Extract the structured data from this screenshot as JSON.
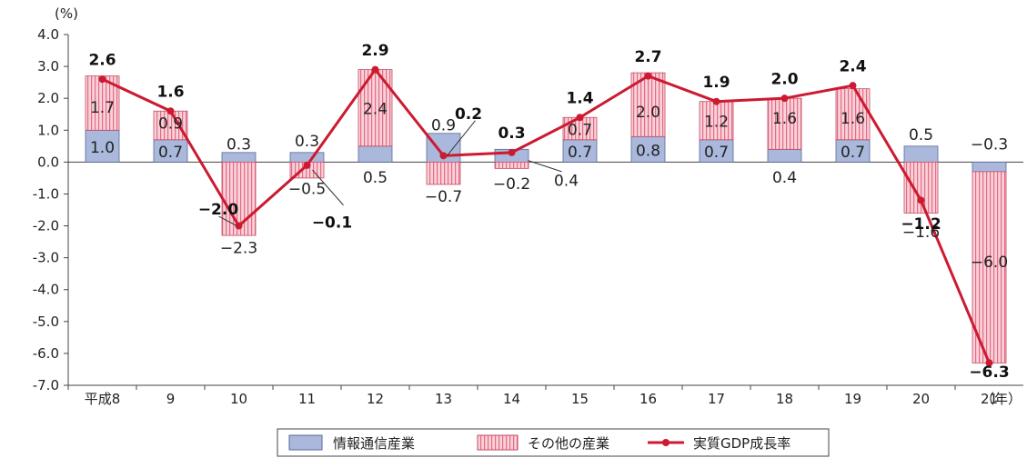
{
  "chart_data": {
    "type": "bar",
    "stacked": true,
    "unit_label": "(%)",
    "x_unit_label": "（年）",
    "categories": [
      "平成8",
      "9",
      "10",
      "11",
      "12",
      "13",
      "14",
      "15",
      "16",
      "17",
      "18",
      "19",
      "20",
      "21"
    ],
    "series": [
      {
        "name": "情報通信産業",
        "color": "#aab8dc",
        "values": [
          1.0,
          0.7,
          0.3,
          0.3,
          0.5,
          0.9,
          0.4,
          0.7,
          0.8,
          0.7,
          0.4,
          0.7,
          0.5,
          -0.3
        ],
        "value_labels": [
          "1.0",
          "0.7",
          "0.3",
          "0.3",
          "0.5",
          "0.9",
          "0.4",
          "0.7",
          "0.8",
          "0.7",
          "0.4",
          "0.7",
          "0.5",
          "−0.3"
        ]
      },
      {
        "name": "その他の産業",
        "color": "#f6c9d1",
        "stripe_color": "#e35d78",
        "values": [
          1.7,
          0.9,
          -2.3,
          -0.5,
          2.4,
          -0.7,
          -0.2,
          0.7,
          2.0,
          1.2,
          1.6,
          1.6,
          -1.6,
          -6.0
        ],
        "value_labels": [
          "1.7",
          "0.9",
          "−2.3",
          "−0.5",
          "2.4",
          "−0.7",
          "−0.2",
          "0.7",
          "2.0",
          "1.2",
          "1.6",
          "1.6",
          "−1.6",
          "−6.0"
        ]
      }
    ],
    "line": {
      "name": "実質GDP成長率",
      "color": "#cc1a30",
      "values": [
        2.6,
        1.6,
        -2.0,
        -0.1,
        2.9,
        0.2,
        0.3,
        1.4,
        2.7,
        1.9,
        2.0,
        2.4,
        -1.2,
        -6.3
      ],
      "value_labels": [
        "2.6",
        "1.6",
        "−2.0",
        "−0.1",
        "2.9",
        "0.2",
        "0.3",
        "1.4",
        "2.7",
        "1.9",
        "2.0",
        "2.4",
        "−1.2",
        "−6.3"
      ]
    },
    "y_ticks": [
      "4.0",
      "3.0",
      "2.0",
      "1.0",
      "0.0",
      "-1.0",
      "-2.0",
      "-3.0",
      "-4.0",
      "-5.0",
      "-6.0",
      "-7.0"
    ],
    "ylim": [
      -7,
      4
    ],
    "grid": false,
    "legend_position": "bottom-center"
  }
}
